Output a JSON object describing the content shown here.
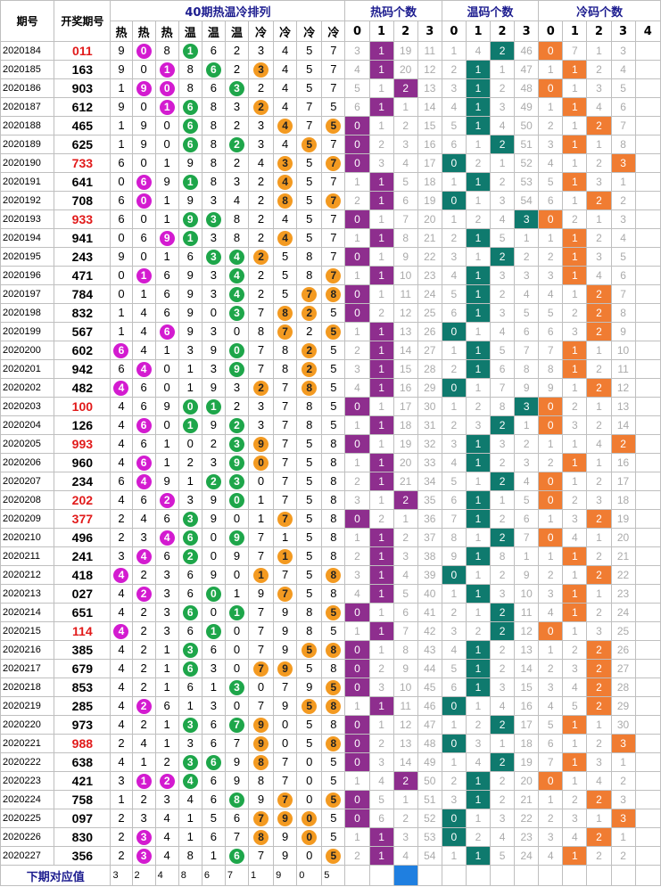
{
  "chart_data": {
    "type": "table",
    "headers": {
      "period": "期号",
      "draw": "开奖期号",
      "arrangement": "40期热温冷排列",
      "hot_count": "热码个数",
      "warm_count": "温码个数",
      "cold_count": "冷码个数",
      "arrangement_labels": [
        "热",
        "热",
        "热",
        "温",
        "温",
        "温",
        "冷",
        "冷",
        "冷",
        "冷"
      ],
      "count_labels": {
        "hot": [
          "0",
          "1",
          "2",
          "3"
        ],
        "warm": [
          "0",
          "1",
          "2",
          "3"
        ],
        "cold": [
          "0",
          "1",
          "2",
          "3",
          "4"
        ]
      }
    },
    "rows": [
      {
        "p": "2020184",
        "d": "011",
        "red": true,
        "a": "9081623457",
        "h": [
          0,
          1,
          2,
          3,
          1,
          2,
          3,
          0,
          0,
          4,
          0,
          1,
          2,
          1,
          2,
          3,
          4,
          5,
          6,
          7,
          8,
          9,
          1,
          3,
          4,
          5,
          1,
          2,
          3,
          4,
          5,
          6,
          7,
          8,
          9,
          0,
          1,
          2,
          3,
          4,
          5,
          6,
          7,
          8,
          9
        ],
        "ht": "3,1,19,11",
        "hi": 1,
        "wt": "1,4,2,46",
        "wi": 2,
        "ct": "0,7,1,3,",
        "ci": 0
      },
      {
        "p": "2020185",
        "d": "163",
        "red": false,
        "a": "9018623457",
        "ht": "4,1,20,12",
        "hi": 1,
        "wt": "2,1,1,47",
        "wi": 1,
        "ct": "1,1,2,4,",
        "ci": 1
      },
      {
        "p": "2020186",
        "d": "903",
        "red": false,
        "a": "1908632457",
        "ht": "5,1,2,13",
        "hi": 2,
        "wt": "3,1,2,48",
        "wi": 1,
        "ct": "0,1,3,5,",
        "ci": 0
      },
      {
        "p": "2020187",
        "d": "612",
        "red": false,
        "a": "9016832475",
        "ht": "6,1,1,14",
        "hi": 1,
        "wt": "4,1,3,49",
        "wi": 1,
        "ct": "1,1,4,6,",
        "ci": 1
      },
      {
        "p": "2020188",
        "d": "465",
        "red": false,
        "a": "1906823475",
        "ht": "0,1,2,15",
        "hi": 0,
        "wt": "5,1,4,50",
        "wi": 1,
        "ct": "2,1,2,7,",
        "ci": 2
      },
      {
        "p": "2020189",
        "d": "625",
        "red": false,
        "a": "1906823457",
        "ht": "0,2,3,16",
        "hi": 0,
        "wt": "6,1,2,51",
        "wi": 2,
        "ct": "3,1,1,8,",
        "ci": 1
      },
      {
        "p": "2020190",
        "d": "733",
        "red": true,
        "a": "6019824357",
        "ht": "0,3,4,17",
        "hi": 0,
        "wt": "0,2,1,52",
        "wi": 0,
        "ct": "4,1,2,3,",
        "ci": 3
      },
      {
        "p": "2020191",
        "d": "641",
        "red": false,
        "a": "0691832457",
        "ht": "1,1,5,18",
        "hi": 1,
        "wt": "1,1,2,53",
        "wi": 1,
        "ct": "5,1,3,1,",
        "ci": 1
      },
      {
        "p": "2020192",
        "d": "708",
        "red": false,
        "a": "6019342857",
        "ht": "2,1,6,19",
        "hi": 1,
        "wt": "0,1,3,54",
        "wi": 0,
        "ct": "6,1,2,2,",
        "ci": 2
      },
      {
        "p": "2020193",
        "d": "933",
        "red": true,
        "a": "6019382457",
        "ht": "0,1,7,20",
        "hi": 0,
        "wt": "1,2,4,3",
        "wi": 3,
        "ct": "0,2,1,3,",
        "ci": 0
      },
      {
        "p": "2020194",
        "d": "941",
        "red": false,
        "a": "0691382457",
        "ht": "1,1,8,21",
        "hi": 1,
        "wt": "2,1,5,1",
        "wi": 1,
        "ct": "1,1,2,4,",
        "ci": 1
      },
      {
        "p": "2020195",
        "d": "243",
        "red": false,
        "a": "9016342587",
        "ht": "0,1,9,22",
        "hi": 0,
        "wt": "3,1,2,2",
        "wi": 2,
        "ct": "2,1,3,5,",
        "ci": 1
      },
      {
        "p": "2020196",
        "d": "471",
        "red": false,
        "a": "0169342587",
        "ht": "1,1,10,23",
        "hi": 1,
        "wt": "4,1,3,3",
        "wi": 1,
        "ct": "3,1,4,6,",
        "ci": 1
      },
      {
        "p": "2020197",
        "d": "784",
        "red": false,
        "a": "0169342578",
        "ht": "0,1,11,24",
        "hi": 0,
        "wt": "5,1,2,4",
        "wi": 1,
        "ct": "4,1,2,7,",
        "ci": 2
      },
      {
        "p": "2020198",
        "d": "832",
        "red": false,
        "a": "1469037825",
        "ht": "0,2,12,25",
        "hi": 0,
        "wt": "6,1,3,5",
        "wi": 1,
        "ct": "5,2,2,8,",
        "ci": 2
      },
      {
        "p": "2020199",
        "d": "567",
        "red": false,
        "a": "1469308725",
        "ht": "1,1,13,26",
        "hi": 1,
        "wt": "0,1,4,6",
        "wi": 0,
        "ct": "6,3,2,9,",
        "ci": 2
      },
      {
        "p": "2020200",
        "d": "602",
        "red": false,
        "a": "6413907825",
        "ht": "2,1,14,27",
        "hi": 1,
        "wt": "1,1,5,7",
        "wi": 1,
        "ct": "7,1,1,10,",
        "ci": 1
      },
      {
        "p": "2020201",
        "d": "942",
        "red": false,
        "a": "6401397825",
        "ht": "3,1,15,28",
        "hi": 1,
        "wt": "2,1,6,8",
        "wi": 1,
        "ct": "8,1,2,11,",
        "ci": 1
      },
      {
        "p": "2020202",
        "d": "482",
        "red": false,
        "a": "4601932785",
        "ht": "4,1,16,29",
        "hi": 1,
        "wt": "0,1,7,9",
        "wi": 0,
        "ct": "9,1,2,12,",
        "ci": 2
      },
      {
        "p": "2020203",
        "d": "100",
        "red": true,
        "a": "4690123785",
        "ht": "0,1,17,30",
        "hi": 0,
        "wt": "1,2,8,3",
        "wi": 3,
        "ct": "0,2,1,13,",
        "ci": 0
      },
      {
        "p": "2020204",
        "d": "126",
        "red": false,
        "a": "4601923785",
        "ht": "1,1,18,31",
        "hi": 1,
        "wt": "2,3,2,1",
        "wi": 2,
        "ct": "0,3,2,14,",
        "ci": 0
      },
      {
        "p": "2020205",
        "d": "993",
        "red": true,
        "a": "4610239758",
        "ht": "0,1,19,32",
        "hi": 0,
        "wt": "3,1,3,2",
        "wi": 1,
        "ct": "1,1,4,2,",
        "ci": 3
      },
      {
        "p": "2020206",
        "d": "960",
        "red": false,
        "a": "4612390758",
        "ht": "1,1,20,33",
        "hi": 1,
        "wt": "4,1,2,3",
        "wi": 1,
        "ct": "2,1,1,16,",
        "ci": 1
      },
      {
        "p": "2020207",
        "d": "234",
        "red": false,
        "a": "6491230758",
        "ht": "2,1,21,34",
        "hi": 1,
        "wt": "5,1,2,4",
        "wi": 2,
        "ct": "0,1,2,17,",
        "ci": 0
      },
      {
        "p": "2020208",
        "d": "202",
        "red": true,
        "a": "4623901758",
        "ht": "3,1,2,35",
        "hi": 2,
        "wt": "6,1,1,5",
        "wi": 1,
        "ct": "0,2,3,18,",
        "ci": 0
      },
      {
        "p": "2020209",
        "d": "377",
        "red": true,
        "a": "2463901758",
        "ht": "0,2,1,36",
        "hi": 0,
        "wt": "7,1,2,6",
        "wi": 1,
        "ct": "1,3,2,19,",
        "ci": 2
      },
      {
        "p": "2020210",
        "d": "496",
        "red": false,
        "a": "2346097158",
        "ht": "1,1,2,37",
        "hi": 1,
        "wt": "8,1,2,7",
        "wi": 2,
        "ct": "0,4,1,20,",
        "ci": 0
      },
      {
        "p": "2020211",
        "d": "241",
        "red": false,
        "a": "3462097158",
        "ht": "2,1,3,38",
        "hi": 1,
        "wt": "9,1,8,1",
        "wi": 1,
        "ct": "1,1,2,21,",
        "ci": 1
      },
      {
        "p": "2020212",
        "d": "418",
        "red": false,
        "a": "4236901758",
        "ht": "3,1,4,39",
        "hi": 1,
        "wt": "0,1,2,9",
        "wi": 0,
        "ct": "2,1,2,22,",
        "ci": 2
      },
      {
        "p": "2020213",
        "d": "027",
        "red": false,
        "a": "4236019758",
        "ht": "4,1,5,40",
        "hi": 1,
        "wt": "1,1,3,10",
        "wi": 1,
        "ct": "3,1,1,23,",
        "ci": 1
      },
      {
        "p": "2020214",
        "d": "651",
        "red": false,
        "a": "4236017985",
        "ht": "0,1,6,41",
        "hi": 0,
        "wt": "2,1,2,11",
        "wi": 2,
        "ct": "4,1,2,24,",
        "ci": 1
      },
      {
        "p": "2020215",
        "d": "114",
        "red": true,
        "a": "4236107985",
        "ht": "1,1,7,42",
        "hi": 1,
        "wt": "3,2,2,12",
        "wi": 2,
        "ct": "0,1,3,25,",
        "ci": 0
      },
      {
        "p": "2020216",
        "d": "385",
        "red": false,
        "a": "4213607958",
        "ht": "0,1,8,43",
        "hi": 0,
        "wt": "4,1,2,13",
        "wi": 1,
        "ct": "1,2,2,26,",
        "ci": 2
      },
      {
        "p": "2020217",
        "d": "679",
        "red": false,
        "a": "4216307958",
        "ht": "0,2,9,44",
        "hi": 0,
        "wt": "5,1,2,14",
        "wi": 1,
        "ct": "2,3,2,27,",
        "ci": 2
      },
      {
        "p": "2020218",
        "d": "853",
        "red": false,
        "a": "4216130795",
        "ht": "0,3,10,45",
        "hi": 0,
        "wt": "6,1,3,15",
        "wi": 1,
        "ct": "3,4,2,28,",
        "ci": 2
      },
      {
        "p": "2020219",
        "d": "285",
        "red": false,
        "a": "4261307958",
        "ht": "1,1,11,46",
        "hi": 1,
        "wt": "0,1,4,16",
        "wi": 0,
        "ct": "4,5,2,29,",
        "ci": 2
      },
      {
        "p": "2020220",
        "d": "973",
        "red": false,
        "a": "4213679058",
        "ht": "0,1,12,47",
        "hi": 0,
        "wt": "1,2,2,17",
        "wi": 2,
        "ct": "5,1,1,30,",
        "ci": 1
      },
      {
        "p": "2020221",
        "d": "988",
        "red": true,
        "a": "2413679058",
        "ht": "0,2,13,48",
        "hi": 0,
        "wt": "0,3,1,18",
        "wi": 0,
        "ct": "6,1,2,3,",
        "ci": 3
      },
      {
        "p": "2020222",
        "d": "638",
        "red": false,
        "a": "4123698705",
        "ht": "0,3,14,49",
        "hi": 0,
        "wt": "1,4,2,19",
        "wi": 2,
        "ct": "7,1,3,1,",
        "ci": 1
      },
      {
        "p": "2020223",
        "d": "421",
        "red": false,
        "a": "3124698705",
        "ht": "1,4,2,50",
        "hi": 2,
        "wt": "2,1,2,20",
        "wi": 1,
        "ct": "0,1,4,2,",
        "ci": 0
      },
      {
        "p": "2020224",
        "d": "758",
        "red": false,
        "a": "1234689705",
        "ht": "0,5,1,51",
        "hi": 0,
        "wt": "3,1,2,21",
        "wi": 1,
        "ct": "1,2,2,3,",
        "ci": 2
      },
      {
        "p": "2020225",
        "d": "097",
        "red": false,
        "a": "2341567905",
        "ht": "0,6,2,52",
        "hi": 0,
        "wt": "0,1,3,22",
        "wi": 0,
        "ct": "2,3,1,3,",
        "ci": 3
      },
      {
        "p": "2020226",
        "d": "830",
        "red": false,
        "a": "2341678905",
        "ht": "1,1,3,53",
        "hi": 1,
        "wt": "0,2,4,23",
        "wi": 0,
        "ct": "3,4,2,1,",
        "ci": 2
      },
      {
        "p": "2020227",
        "d": "356",
        "red": false,
        "a": "2348167905",
        "ht": "2,1,4,54",
        "hi": 1,
        "wt": "1,1,5,24",
        "wi": 1,
        "ct": "4,1,2,2,",
        "ci": 1
      }
    ],
    "footer": {
      "label": "下期对应值",
      "values": [
        "3",
        "2",
        "4",
        "8",
        "6",
        "7",
        "1",
        "9",
        "0",
        "5"
      ]
    }
  }
}
